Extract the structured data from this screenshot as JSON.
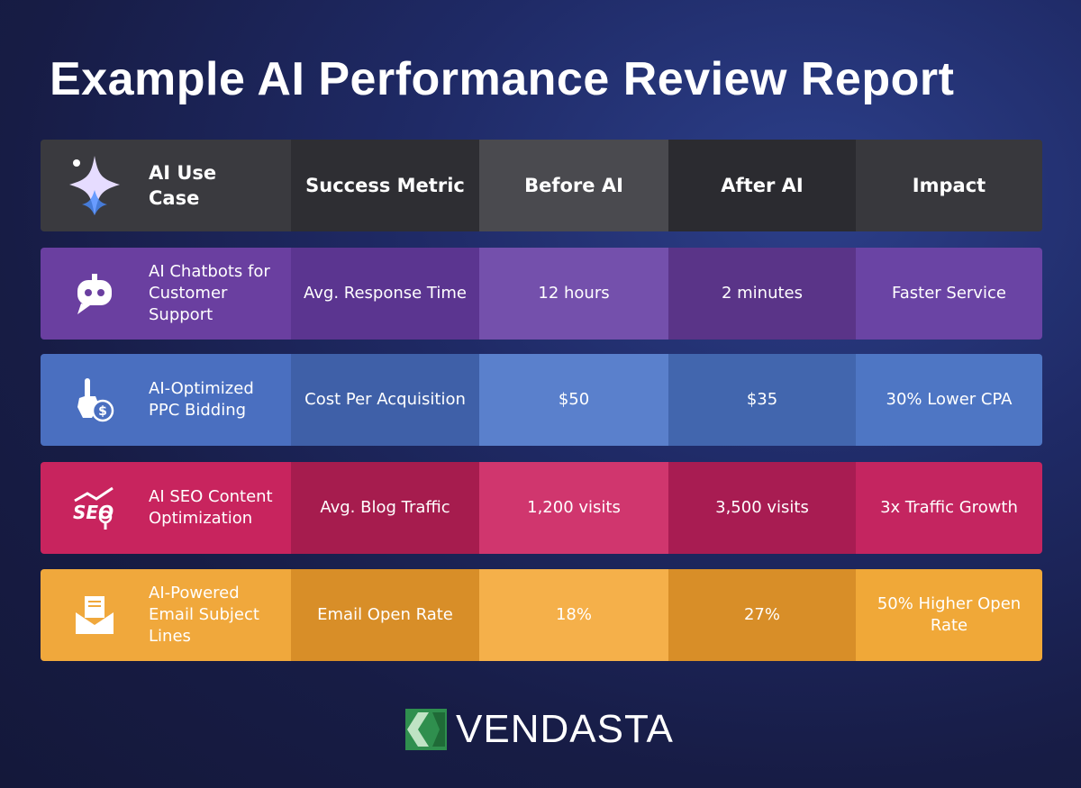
{
  "header": {
    "title": "Example AI Performance Review Report"
  },
  "table": {
    "columns": [
      "AI Use Case",
      "Success Metric",
      "Before AI",
      "After AI",
      "Impact"
    ],
    "rows": [
      [
        "AI Chatbots for Customer Support",
        "Avg. Response Time",
        "12 hours",
        "2 minutes",
        "Faster Service"
      ],
      [
        "AI-Optimized PPC Bidding",
        "Cost Per Acquisition",
        "$50",
        "$35",
        "30% Lower CPA"
      ],
      [
        "AI SEO Content Optimization",
        "Avg. Blog Traffic",
        "1,200 visits",
        "3,500 visits",
        "3x Traffic Growth"
      ],
      [
        "AI-Powered Email Subject Lines",
        "Email Open Rate",
        "18%",
        "27%",
        "50% Higher Open Rate"
      ]
    ]
  },
  "footer": {
    "logo": "VENDASTA"
  }
}
